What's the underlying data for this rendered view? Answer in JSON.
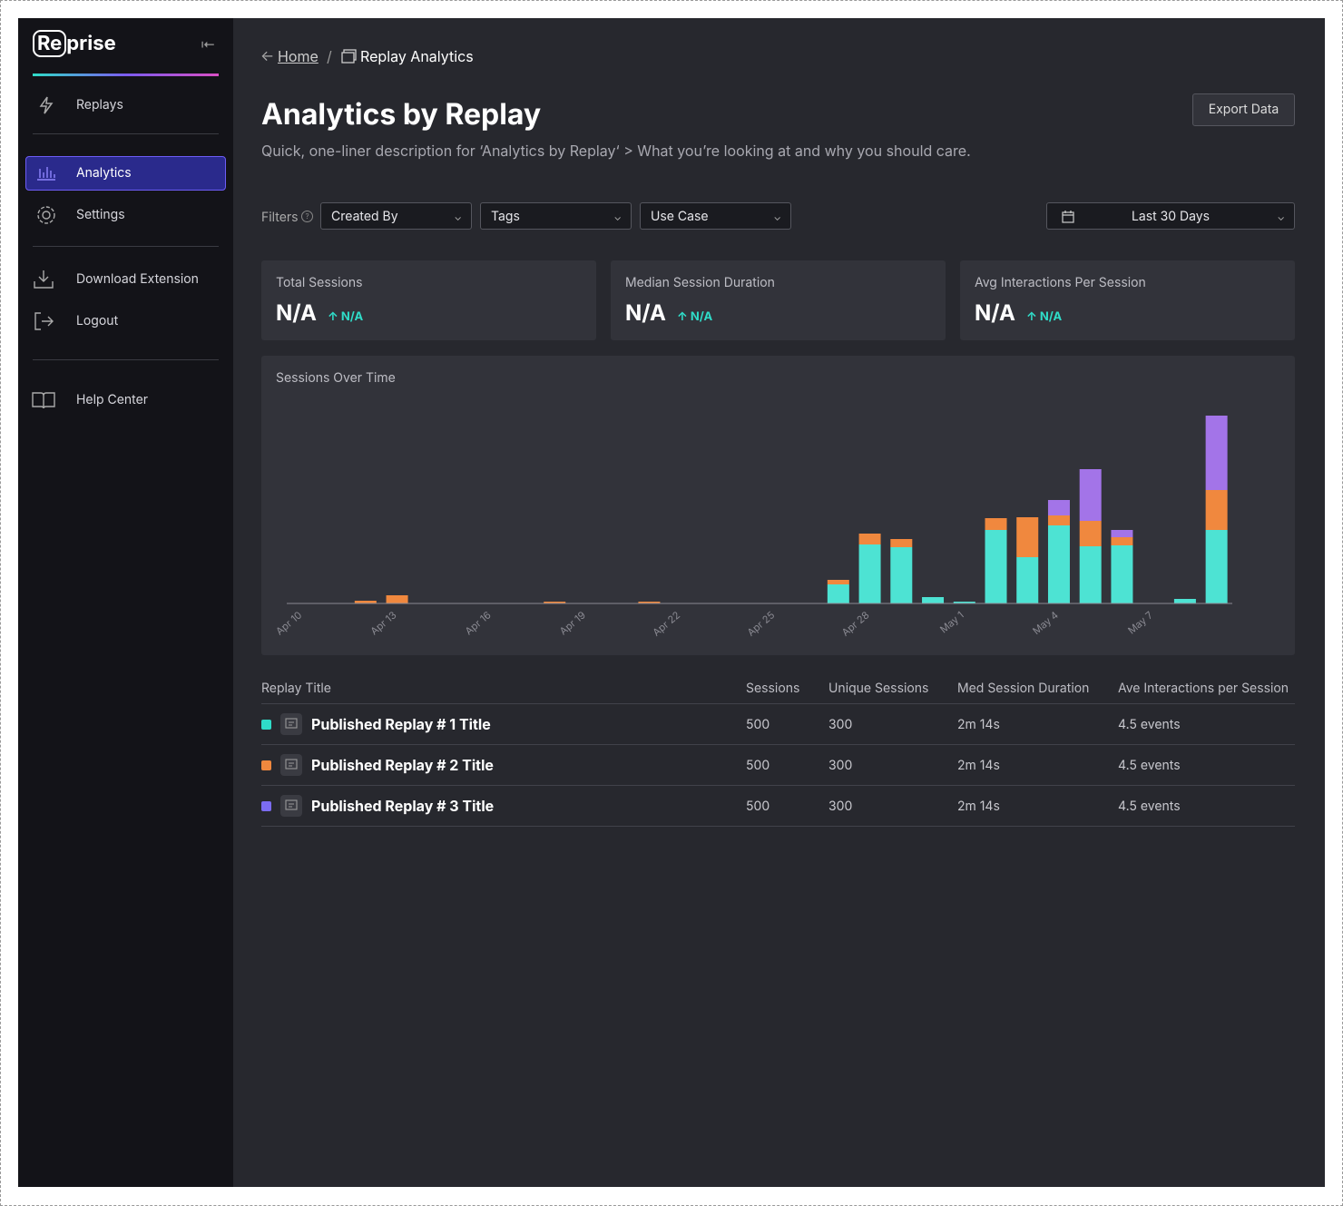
{
  "sidebar": {
    "logo": [
      "Re",
      "prise"
    ],
    "nav": [
      "Replays",
      "Analytics",
      "Settings",
      "Download Extension",
      "Logout",
      "Help Center"
    ]
  },
  "breadcrumb": [
    "Home",
    "/",
    "Replay Analytics"
  ],
  "header": {
    "title": "Analytics by Replay",
    "description": "Quick, one-liner description for ‘Analytics by Replay‘ > What you’re looking at and why you should care.",
    "button": "Export Data"
  },
  "filters": {
    "label": "Filters",
    "dropdowns": [
      "Created By",
      "Tags",
      "Use Case"
    ],
    "date": "Last 30 Days"
  },
  "cards": [
    {
      "label": "Total Sessions",
      "value": "N/A",
      "delta": "N/A"
    },
    {
      "label": "Median Session Duration",
      "value": "N/A",
      "delta": "N/A"
    },
    {
      "label": "Avg Interactions Per Session",
      "value": "N/A",
      "delta": "N/A"
    }
  ],
  "chart_data": {
    "type": "stacked_bar",
    "title": "Sessions Over Time",
    "categories": [
      "Apr 10",
      null,
      null,
      "Apr 13",
      null,
      null,
      "Apr 16",
      null,
      null,
      "Apr 19",
      null,
      null,
      "Apr 22",
      null,
      null,
      "Apr 25",
      null,
      null,
      "Apr 28",
      null,
      null,
      "May 1",
      null,
      null,
      "May 4",
      null,
      null,
      "May 7",
      null,
      null
    ],
    "series": [
      {
        "color": "#4de3d3",
        "values": [
          0,
          0,
          0,
          0,
          0,
          0,
          0,
          0,
          0,
          0,
          0,
          0,
          0,
          0,
          0,
          0,
          0,
          21,
          65,
          62,
          7,
          2,
          81,
          51,
          86,
          63,
          64,
          0,
          5,
          81
        ]
      },
      {
        "color": "#f0883e",
        "values": [
          0,
          0,
          3,
          9,
          0,
          0,
          0,
          0,
          2,
          0,
          0,
          2,
          0,
          0,
          0,
          0,
          0,
          5,
          12,
          9,
          0,
          0,
          13,
          44,
          11,
          28,
          9,
          0,
          0,
          44
        ]
      },
      {
        "color": "#a374e8",
        "values": [
          0,
          0,
          0,
          0,
          0,
          0,
          0,
          0,
          0,
          0,
          0,
          0,
          0,
          0,
          0,
          0,
          0,
          0,
          0,
          0,
          0,
          0,
          0,
          0,
          17,
          57,
          8,
          0,
          0,
          82
        ]
      }
    ],
    "ylim": [
      0,
      210
    ]
  },
  "table": {
    "columns": [
      "Replay Title",
      "Sessions",
      "Unique Sessions",
      "Med Session Duration",
      "Ave Interactions per Session"
    ],
    "rows": [
      [
        "Published Replay # 1 Title",
        "500",
        "300",
        "2m 14s",
        "4.5 events"
      ],
      [
        "Published Replay # 2 Title",
        "500",
        "300",
        "2m 14s",
        "4.5 events"
      ],
      [
        "Published Replay # 3 Title",
        "500",
        "300",
        "2m 14s",
        "4.5 events"
      ]
    ]
  }
}
